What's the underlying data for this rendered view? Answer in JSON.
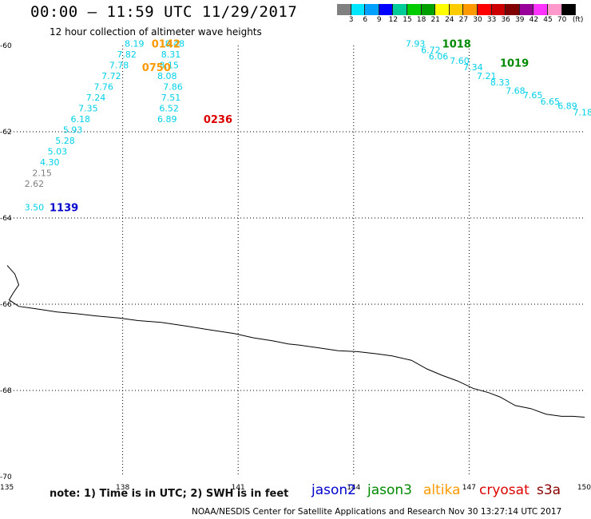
{
  "header": {
    "title": "00:00 – 11:59 UTC 11/29/2017",
    "subtitle": "12 hour collection of altimeter wave heights"
  },
  "color_scale": {
    "labels": [
      "3",
      "6",
      "9",
      "12",
      "15",
      "18",
      "21",
      "24",
      "27",
      "30",
      "33",
      "36",
      "39",
      "42",
      "45",
      "70"
    ],
    "unit": "(ft)",
    "colors": [
      "#808080",
      "#00e6ff",
      "#00a0ff",
      "#0000ff",
      "#00cc99",
      "#00cc00",
      "#00a000",
      "#ffff00",
      "#ffcc00",
      "#ff9900",
      "#ff0000",
      "#cc0000",
      "#800000",
      "#990099",
      "#ff33ff",
      "#ff99cc",
      "#000000"
    ]
  },
  "map": {
    "lon_labels": [
      "135",
      "138",
      "141",
      "144",
      "147",
      "150"
    ],
    "lat_labels": [
      "-60",
      "-62",
      "-64",
      "-66",
      "-68",
      "-70"
    ],
    "lon_range": [
      135,
      150
    ],
    "lat_range": [
      -60,
      -70
    ],
    "gridline_style": "dotted"
  },
  "satellite_passes": [
    {
      "satellite": "jason2",
      "time": "1139",
      "time_color": "#0000cc",
      "time_pos": {
        "lon": 136.1,
        "lat": -63.75
      },
      "readings": [
        {
          "value": "3.50",
          "lon": 135.45,
          "lat": -63.75,
          "color": "#00d0e8"
        },
        {
          "value": "2.62",
          "lon": 135.45,
          "lat": -63.2,
          "color": "#808080"
        },
        {
          "value": "2.15",
          "lon": 135.65,
          "lat": -62.95,
          "color": "#808080"
        },
        {
          "value": "4.30",
          "lon": 135.85,
          "lat": -62.7,
          "color": "#00d0e8"
        },
        {
          "value": "5.03",
          "lon": 136.05,
          "lat": -62.45,
          "color": "#00d0e8"
        },
        {
          "value": "5.28",
          "lon": 136.25,
          "lat": -62.2,
          "color": "#00d0e8"
        },
        {
          "value": "5.93",
          "lon": 136.45,
          "lat": -61.95,
          "color": "#00d0e8"
        },
        {
          "value": "6.18",
          "lon": 136.65,
          "lat": -61.7,
          "color": "#00d0e8"
        },
        {
          "value": "7.35",
          "lon": 136.85,
          "lat": -61.45,
          "color": "#00d0e8"
        },
        {
          "value": "7.24",
          "lon": 137.05,
          "lat": -61.2,
          "color": "#00d0e8"
        },
        {
          "value": "7.76",
          "lon": 137.25,
          "lat": -60.95,
          "color": "#00d0e8"
        },
        {
          "value": "7.72",
          "lon": 137.45,
          "lat": -60.7,
          "color": "#00d0e8"
        },
        {
          "value": "7.78",
          "lon": 137.65,
          "lat": -60.45,
          "color": "#00d0e8"
        },
        {
          "value": "7.82",
          "lon": 137.85,
          "lat": -60.2,
          "color": "#00d0e8"
        },
        {
          "value": "8.19",
          "lon": 138.05,
          "lat": -59.95,
          "color": "#00d0e8"
        }
      ]
    },
    {
      "satellite": "altika",
      "time": "0750",
      "time_color": "#ff9900",
      "time_pos": {
        "lon": 138.5,
        "lat": -60.5
      },
      "readings": [
        {
          "value": "8.48",
          "lon": 139.1,
          "lat": -59.95,
          "color": "#00d0e8"
        },
        {
          "value": "8.31",
          "lon": 139.0,
          "lat": -60.2,
          "color": "#00d0e8"
        },
        {
          "value": "8.15",
          "lon": 138.95,
          "lat": -60.45,
          "color": "#00d0e8"
        },
        {
          "value": "8.08",
          "lon": 138.9,
          "lat": -60.7,
          "color": "#00d0e8"
        },
        {
          "value": "7.86",
          "lon": 139.05,
          "lat": -60.95,
          "color": "#00d0e8"
        },
        {
          "value": "7.51",
          "lon": 139.0,
          "lat": -61.2,
          "color": "#00d0e8"
        },
        {
          "value": "6.52",
          "lon": 138.95,
          "lat": -61.45,
          "color": "#00d0e8"
        },
        {
          "value": "6.89",
          "lon": 138.9,
          "lat": -61.7,
          "color": "#00d0e8"
        }
      ]
    },
    {
      "satellite": "altika",
      "time": "0142",
      "time_color": "#ff9900",
      "time_pos": {
        "lon": 138.75,
        "lat": -59.95
      },
      "readings": []
    },
    {
      "satellite": "cryosat",
      "time": "0236",
      "time_color": "#dd0000",
      "time_pos": {
        "lon": 140.1,
        "lat": -61.7
      },
      "readings": []
    },
    {
      "satellite": "jason3",
      "time": "1018",
      "time_color": "#008800",
      "time_pos": {
        "lon": 146.3,
        "lat": -59.95
      },
      "readings": [
        {
          "value": "7.93",
          "lon": 145.35,
          "lat": -59.95,
          "color": "#00d0e8"
        },
        {
          "value": "6.72",
          "lon": 145.75,
          "lat": -60.1,
          "color": "#00d0e8"
        },
        {
          "value": "6.06",
          "lon": 145.95,
          "lat": -60.25,
          "color": "#00d0e8"
        },
        {
          "value": "7.60",
          "lon": 146.5,
          "lat": -60.35,
          "color": "#00d0e8"
        },
        {
          "value": "7.34",
          "lon": 146.85,
          "lat": -60.5,
          "color": "#00d0e8"
        },
        {
          "value": "7.21",
          "lon": 147.2,
          "lat": -60.7,
          "color": "#00d0e8"
        },
        {
          "value": "8.33",
          "lon": 147.55,
          "lat": -60.85,
          "color": "#00d0e8"
        },
        {
          "value": "7.68",
          "lon": 147.95,
          "lat": -61.05,
          "color": "#00d0e8"
        },
        {
          "value": "7.65",
          "lon": 148.4,
          "lat": -61.15,
          "color": "#00d0e8"
        },
        {
          "value": "6.65",
          "lon": 148.85,
          "lat": -61.3,
          "color": "#00d0e8"
        },
        {
          "value": "6.89",
          "lon": 149.3,
          "lat": -61.4,
          "color": "#00d0e8"
        },
        {
          "value": "7.18",
          "lon": 149.7,
          "lat": -61.55,
          "color": "#00d0e8"
        }
      ]
    },
    {
      "satellite": "jason3",
      "time": "1019",
      "time_color": "#008800",
      "time_pos": {
        "lon": 147.8,
        "lat": -60.4
      },
      "readings": []
    }
  ],
  "coastline": [
    [
      135.0,
      -65.1
    ],
    [
      135.2,
      -65.3
    ],
    [
      135.3,
      -65.55
    ],
    [
      135.15,
      -65.75
    ],
    [
      135.05,
      -65.9
    ],
    [
      135.3,
      -66.05
    ],
    [
      135.7,
      -66.1
    ],
    [
      136.3,
      -66.18
    ],
    [
      136.8,
      -66.22
    ],
    [
      137.3,
      -66.27
    ],
    [
      137.9,
      -66.32
    ],
    [
      138.4,
      -66.38
    ],
    [
      139.0,
      -66.42
    ],
    [
      139.6,
      -66.5
    ],
    [
      140.3,
      -66.6
    ],
    [
      140.9,
      -66.68
    ],
    [
      141.4,
      -66.78
    ],
    [
      141.9,
      -66.85
    ],
    [
      142.3,
      -66.92
    ],
    [
      142.6,
      -66.95
    ],
    [
      143.0,
      -67.0
    ],
    [
      143.6,
      -67.08
    ],
    [
      144.1,
      -67.1
    ],
    [
      144.6,
      -67.15
    ],
    [
      145.0,
      -67.2
    ],
    [
      145.5,
      -67.3
    ],
    [
      145.9,
      -67.5
    ],
    [
      146.3,
      -67.65
    ],
    [
      146.7,
      -67.78
    ],
    [
      147.1,
      -67.95
    ],
    [
      147.5,
      -68.05
    ],
    [
      147.8,
      -68.15
    ],
    [
      148.2,
      -68.35
    ],
    [
      148.6,
      -68.42
    ],
    [
      149.0,
      -68.55
    ],
    [
      149.4,
      -68.6
    ],
    [
      149.7,
      -68.6
    ],
    [
      150.0,
      -68.62
    ]
  ],
  "note": "note: 1) Time is in UTC; 2) SWH is in feet",
  "legend": [
    {
      "name": "jason2",
      "color": "#0000cc"
    },
    {
      "name": "jason3",
      "color": "#008800"
    },
    {
      "name": "altika",
      "color": "#ff9900"
    },
    {
      "name": "cryosat",
      "color": "#dd0000"
    },
    {
      "name": "s3a",
      "color": "#880000"
    }
  ],
  "footer": "NOAA/NESDIS Center for Satellite Applications and Research   Nov 30 13:27:14 UTC 2017"
}
